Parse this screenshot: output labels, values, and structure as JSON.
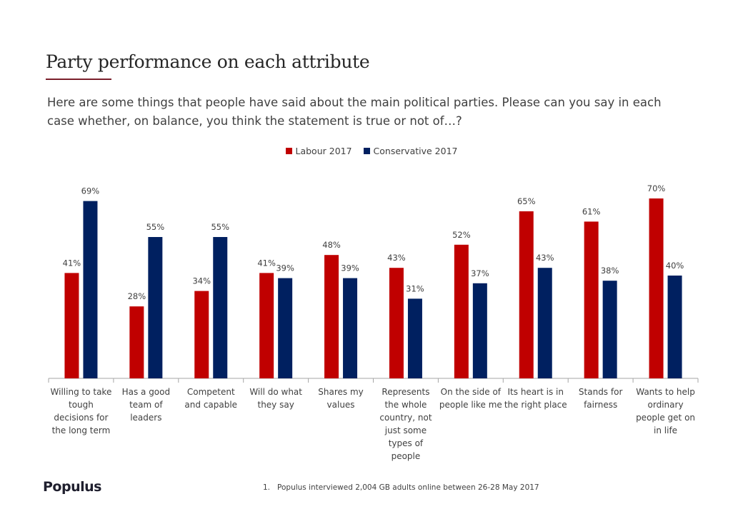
{
  "header": {
    "title": "Party performance on each attribute",
    "subtitle": "Here are some things that people have said about the main political parties. Please can you say in each case whether, on balance, you think the statement is true or not of…?"
  },
  "footer": {
    "logo_text": "Populus",
    "footnote_number": "1.",
    "footnote_text": "Populus interviewed  2,004 GB adults online between  26-28 May 2017"
  },
  "chart_data": {
    "type": "bar",
    "categories": [
      "Willing to take tough decisions for the long term",
      "Has a good team of leaders",
      "Competent and capable",
      "Will do what they say",
      "Shares my values",
      "Represents the whole country, not just some types of people",
      "On the side of people like me",
      "Its heart is in the right place",
      "Stands for fairness",
      "Wants to help ordinary people get on in life"
    ],
    "category_lines": [
      [
        "Willing to take",
        "tough",
        "decisions for",
        "the long term"
      ],
      [
        "Has a good",
        "team of",
        "leaders"
      ],
      [
        "Competent",
        "and capable"
      ],
      [
        "Will do what",
        "they say"
      ],
      [
        "Shares my",
        "values"
      ],
      [
        "Represents",
        "the whole",
        "country, not",
        "just some",
        "types of",
        "people"
      ],
      [
        "On the side of",
        "people like me"
      ],
      [
        "Its heart is in",
        "the right place"
      ],
      [
        "Stands for",
        "fairness"
      ],
      [
        "Wants to help",
        "ordinary",
        "people get on",
        "in life"
      ]
    ],
    "series": [
      {
        "name": "Labour 2017",
        "color": "#c00000",
        "values": [
          41,
          28,
          34,
          41,
          48,
          43,
          52,
          65,
          61,
          70
        ]
      },
      {
        "name": "Conservative 2017",
        "color": "#002060",
        "values": [
          69,
          55,
          55,
          39,
          39,
          31,
          37,
          43,
          38,
          40
        ]
      }
    ],
    "value_suffix": "%",
    "ylim": [
      0,
      70
    ],
    "grid": false,
    "legend_position": "top-center"
  }
}
